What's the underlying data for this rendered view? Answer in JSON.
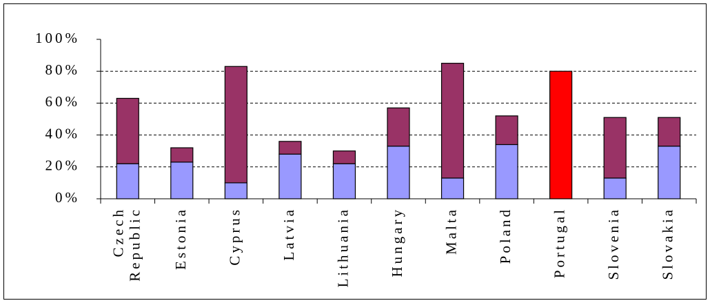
{
  "chart_data": {
    "type": "stacked_bar",
    "categories": [
      "Czech Republic",
      "Estonia",
      "Cyprus",
      "Latvia",
      "Lithuania",
      "Hungary",
      "Malta",
      "Poland",
      "Portugal",
      "Slovenia",
      "Slovakia"
    ],
    "series": [
      {
        "color": "#9999ff",
        "values": [
          22,
          23,
          10,
          28,
          22,
          33,
          13,
          34,
          null,
          13,
          33
        ]
      },
      {
        "color": "#993366",
        "values": [
          41,
          9,
          73,
          8,
          8,
          24,
          72,
          18,
          null,
          38,
          18
        ]
      },
      {
        "color": "#ff0000",
        "values": [
          null,
          null,
          null,
          null,
          null,
          null,
          null,
          null,
          80,
          null,
          null
        ]
      }
    ],
    "ylim": [
      0,
      100
    ],
    "yticks": [
      {
        "value": 0,
        "label": "0%"
      },
      {
        "value": 20,
        "label": "20%"
      },
      {
        "value": 40,
        "label": "40%"
      },
      {
        "value": 60,
        "label": "60%"
      },
      {
        "value": 80,
        "label": "80%"
      },
      {
        "value": 100,
        "label": "100%"
      }
    ],
    "grid": true
  }
}
